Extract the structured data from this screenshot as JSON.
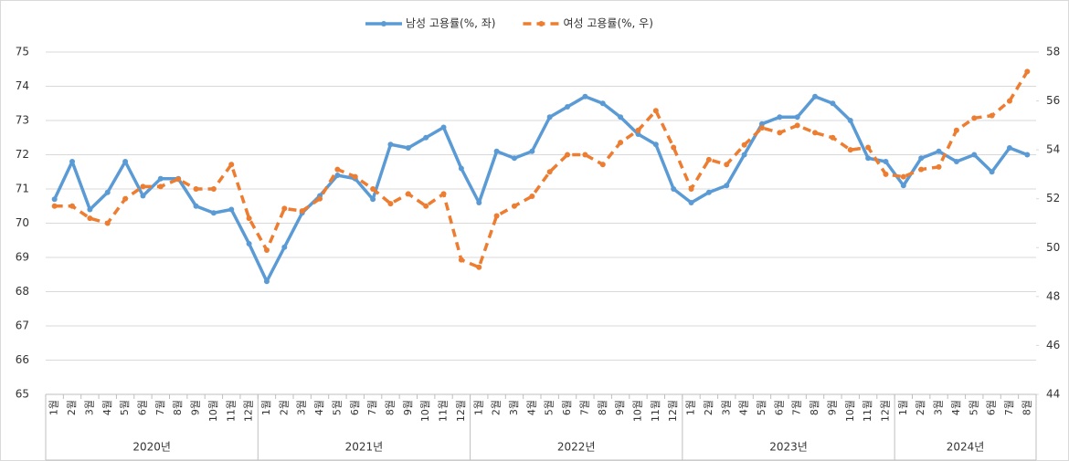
{
  "chart_data": {
    "type": "line",
    "categories": [
      "1월",
      "2월",
      "3월",
      "4월",
      "5월",
      "6월",
      "7월",
      "8월",
      "9월",
      "10월",
      "11월",
      "12월",
      "1월",
      "2월",
      "3월",
      "4월",
      "5월",
      "6월",
      "7월",
      "8월",
      "9월",
      "10월",
      "11월",
      "12월",
      "1월",
      "2월",
      "3월",
      "4월",
      "5월",
      "6월",
      "7월",
      "8월",
      "9월",
      "10월",
      "11월",
      "12월",
      "1월",
      "2월",
      "3월",
      "4월",
      "5월",
      "6월",
      "7월",
      "8월",
      "9월",
      "10월",
      "11월",
      "12월",
      "1월",
      "2월",
      "3월",
      "4월",
      "5월",
      "6월",
      "7월",
      "8월"
    ],
    "year_labels": [
      "2020년",
      "2021년",
      "2022년",
      "2023년",
      "2024년"
    ],
    "series": [
      {
        "name": "남성 고용률(%, 좌)",
        "color": "#5b9bd5",
        "axis": "y",
        "values": [
          70.7,
          71.8,
          70.4,
          70.9,
          71.8,
          70.8,
          71.3,
          71.3,
          70.5,
          70.3,
          70.4,
          69.4,
          68.3,
          69.3,
          70.3,
          70.8,
          71.4,
          71.3,
          70.7,
          72.3,
          72.2,
          72.5,
          72.8,
          71.6,
          70.6,
          72.1,
          71.9,
          72.1,
          73.1,
          73.4,
          73.7,
          73.5,
          73.1,
          72.6,
          72.3,
          71.0,
          70.6,
          70.9,
          71.1,
          72.0,
          72.9,
          73.1,
          73.1,
          73.7,
          73.5,
          73.0,
          71.9,
          71.8,
          71.1,
          71.9,
          72.1,
          71.8,
          72.0,
          71.5,
          72.2,
          72.0
        ]
      },
      {
        "name": "여성 고용률(%, 우)",
        "color": "#ed7d31",
        "axis": "y2",
        "values": [
          51.7,
          51.7,
          51.2,
          51.0,
          52.0,
          52.5,
          52.5,
          52.8,
          52.4,
          52.4,
          53.4,
          51.2,
          49.9,
          51.6,
          51.5,
          52.0,
          53.2,
          52.9,
          52.4,
          51.8,
          52.2,
          51.7,
          52.2,
          49.5,
          49.2,
          51.3,
          51.7,
          52.1,
          53.1,
          53.8,
          53.8,
          53.4,
          54.3,
          54.8,
          55.6,
          54.1,
          52.4,
          53.6,
          53.4,
          54.2,
          54.9,
          54.7,
          55.0,
          54.7,
          54.5,
          54.0,
          54.1,
          53.0,
          52.9,
          53.2,
          53.3,
          54.8,
          55.3,
          55.4,
          56.0,
          57.2
        ]
      }
    ],
    "ylim": [
      65,
      75
    ],
    "yticks": [
      65,
      66,
      67,
      68,
      69,
      70,
      71,
      72,
      73,
      74,
      75
    ],
    "y2lim": [
      44,
      58
    ],
    "y2ticks": [
      44,
      46,
      48,
      50,
      52,
      54,
      56,
      58
    ],
    "grid": true
  }
}
